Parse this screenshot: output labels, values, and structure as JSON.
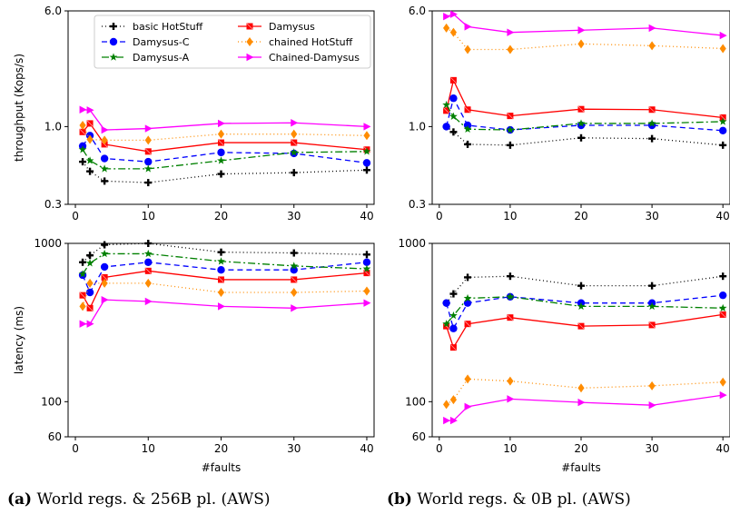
{
  "captions": [
    {
      "tag": "(a)",
      "text": "World regs. & 256B pl. (AWS)"
    },
    {
      "tag": "(b)",
      "text": "World regs. & 0B pl. (AWS)"
    }
  ],
  "styles": {
    "basic HotStuff": {
      "color": "#000000",
      "marker": "plus",
      "dash": "1,3"
    },
    "Damysus": {
      "color": "#ff0000",
      "marker": "x",
      "dash": ""
    },
    "Damysus-C": {
      "color": "#0000ff",
      "marker": "circle",
      "dash": "6,4"
    },
    "chained HotStuff": {
      "color": "#ff8c00",
      "marker": "diamond",
      "dash": "1,3"
    },
    "Damysus-A": {
      "color": "#008000",
      "marker": "star",
      "dash": "8,3,2,3"
    },
    "Chained-Damysus": {
      "color": "#ff00ff",
      "marker": "triangle",
      "dash": ""
    }
  },
  "legend": {
    "placement": "top-left of panel (a) throughput",
    "entries": [
      "basic HotStuff",
      "Damysus",
      "Damysus-C",
      "chained HotStuff",
      "Damysus-A",
      "Chained-Damysus"
    ]
  },
  "chart_data": [
    {
      "type": "line",
      "id": "a-throughput",
      "xlabel": "",
      "ylabel": "throughput (Kops/s)",
      "yscale": "log",
      "ylim": [
        0.3,
        6.0
      ],
      "yticks": [
        "6.0",
        "1.0",
        "0.3"
      ],
      "xlim": [
        -1,
        41
      ],
      "xticks": [
        "0",
        "10",
        "20",
        "30",
        "40"
      ],
      "x": [
        1,
        2,
        4,
        10,
        20,
        30,
        40
      ],
      "series": [
        {
          "name": "basic HotStuff",
          "values": [
            0.58,
            0.5,
            0.43,
            0.42,
            0.48,
            0.49,
            0.51
          ]
        },
        {
          "name": "Damysus",
          "values": [
            0.92,
            1.05,
            0.76,
            0.68,
            0.78,
            0.78,
            0.7
          ]
        },
        {
          "name": "Damysus-C",
          "values": [
            0.74,
            0.87,
            0.61,
            0.58,
            0.67,
            0.66,
            0.57
          ]
        },
        {
          "name": "chained HotStuff",
          "values": [
            1.02,
            0.82,
            0.81,
            0.81,
            0.89,
            0.89,
            0.87
          ]
        },
        {
          "name": "Damysus-A",
          "values": [
            0.7,
            0.59,
            0.52,
            0.52,
            0.59,
            0.67,
            0.68
          ]
        },
        {
          "name": "Chained-Damysus",
          "values": [
            1.3,
            1.29,
            0.95,
            0.97,
            1.05,
            1.06,
            1.0
          ]
        }
      ]
    },
    {
      "type": "line",
      "id": "b-throughput",
      "xlabel": "",
      "ylabel": "",
      "yscale": "log",
      "ylim": [
        0.3,
        6.0
      ],
      "yticks": [
        "6.0",
        "1.0",
        "0.3"
      ],
      "xlim": [
        -1,
        41
      ],
      "xticks": [
        "0",
        "10",
        "20",
        "30",
        "40"
      ],
      "x": [
        1,
        2,
        4,
        10,
        20,
        30,
        40
      ],
      "series": [
        {
          "name": "basic HotStuff",
          "values": [
            1.0,
            0.92,
            0.76,
            0.75,
            0.84,
            0.83,
            0.75
          ]
        },
        {
          "name": "Damysus",
          "values": [
            1.28,
            2.05,
            1.3,
            1.18,
            1.31,
            1.3,
            1.15
          ]
        },
        {
          "name": "Damysus-C",
          "values": [
            1.0,
            1.55,
            1.02,
            0.95,
            1.02,
            1.02,
            0.94
          ]
        },
        {
          "name": "chained HotStuff",
          "values": [
            4.6,
            4.3,
            3.3,
            3.3,
            3.6,
            3.5,
            3.35
          ]
        },
        {
          "name": "Damysus-A",
          "values": [
            1.4,
            1.17,
            0.96,
            0.95,
            1.05,
            1.05,
            1.08
          ]
        },
        {
          "name": "Chained-Damysus",
          "values": [
            5.5,
            5.7,
            4.7,
            4.3,
            4.45,
            4.6,
            4.1
          ]
        }
      ]
    },
    {
      "type": "line",
      "id": "a-latency",
      "xlabel": "#faults",
      "ylabel": "latency (ms)",
      "yscale": "log",
      "ylim": [
        60,
        1000
      ],
      "yticks": [
        "1000",
        "100",
        "60"
      ],
      "xlim": [
        -1,
        41
      ],
      "xticks": [
        "0",
        "10",
        "20",
        "30",
        "40"
      ],
      "x": [
        1,
        2,
        4,
        10,
        20,
        30,
        40
      ],
      "series": [
        {
          "name": "basic HotStuff",
          "values": [
            760,
            840,
            980,
            1000,
            880,
            870,
            850
          ]
        },
        {
          "name": "Damysus",
          "values": [
            470,
            390,
            610,
            670,
            590,
            590,
            650
          ]
        },
        {
          "name": "Damysus-C",
          "values": [
            630,
            490,
            710,
            760,
            680,
            680,
            760
          ]
        },
        {
          "name": "chained HotStuff",
          "values": [
            400,
            560,
            560,
            560,
            490,
            490,
            500
          ]
        },
        {
          "name": "Damysus-A",
          "values": [
            640,
            750,
            860,
            860,
            770,
            720,
            690
          ]
        },
        {
          "name": "Chained-Damysus",
          "values": [
            310,
            310,
            440,
            430,
            400,
            390,
            420
          ]
        }
      ]
    },
    {
      "type": "line",
      "id": "b-latency",
      "xlabel": "#faults",
      "ylabel": "",
      "yscale": "log",
      "ylim": [
        60,
        1000
      ],
      "yticks": [
        "1000",
        "100",
        "60"
      ],
      "xlim": [
        -1,
        41
      ],
      "xticks": [
        "0",
        "10",
        "20",
        "30",
        "40"
      ],
      "x": [
        1,
        2,
        4,
        10,
        20,
        30,
        40
      ],
      "series": [
        {
          "name": "basic HotStuff",
          "values": [
            420,
            480,
            610,
            620,
            540,
            540,
            620
          ]
        },
        {
          "name": "Damysus",
          "values": [
            300,
            220,
            310,
            340,
            300,
            305,
            355
          ]
        },
        {
          "name": "Damysus-C",
          "values": [
            420,
            290,
            420,
            460,
            420,
            420,
            470
          ]
        },
        {
          "name": "chained HotStuff",
          "values": [
            96,
            103,
            139,
            135,
            122,
            126,
            133
          ]
        },
        {
          "name": "Damysus-A",
          "values": [
            310,
            350,
            450,
            460,
            400,
            400,
            390
          ]
        },
        {
          "name": "Chained-Damysus",
          "values": [
            76,
            76,
            93,
            104,
            99,
            95,
            110
          ]
        }
      ]
    }
  ]
}
